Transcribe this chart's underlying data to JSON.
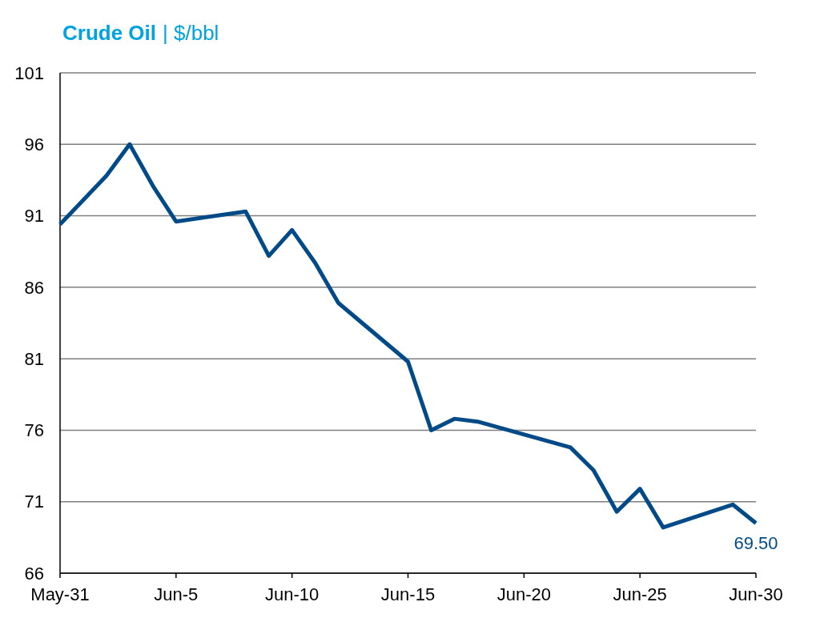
{
  "chart_data": {
    "type": "line",
    "title": "Crude Oil",
    "subtitle": "| $/bbl",
    "x": [
      "--05-31",
      "--06-02",
      "--06-03",
      "--06-04",
      "--06-05",
      "--06-08",
      "--06-09",
      "--06-10",
      "--06-11",
      "--06-12",
      "--06-15",
      "--06-16",
      "--06-17",
      "--06-18",
      "--06-22",
      "--06-23",
      "--06-24",
      "--06-25",
      "--06-26",
      "--06-29",
      "--06-30"
    ],
    "series": [
      {
        "color": "#004b87",
        "values": [
          90.4,
          93.8,
          96.0,
          93.1,
          90.6,
          91.3,
          88.2,
          90.0,
          87.7,
          84.9,
          80.8,
          76.0,
          76.8,
          76.6,
          74.8,
          73.2,
          70.3,
          71.9,
          69.2,
          70.8,
          69.5
        ]
      }
    ],
    "xlim": [
      "--05-31",
      "--06-30"
    ],
    "xticks": [
      {
        "value": "--05-31",
        "label": "May-31"
      },
      {
        "value": "--06-05",
        "label": "Jun-5"
      },
      {
        "value": "--06-10",
        "label": "Jun-10"
      },
      {
        "value": "--06-15",
        "label": "Jun-15"
      },
      {
        "value": "--06-20",
        "label": "Jun-20"
      },
      {
        "value": "--06-25",
        "label": "Jun-25"
      },
      {
        "value": "--06-30",
        "label": "Jun-30"
      }
    ],
    "ylim": [
      66,
      101
    ],
    "yticks": [
      66,
      71,
      76,
      81,
      86,
      91,
      96,
      101
    ],
    "grid": "y",
    "line_style": "solid",
    "marker": "none",
    "annotations": [
      {
        "text": "69.50",
        "x": "--06-30",
        "y": 69.5
      }
    ]
  }
}
